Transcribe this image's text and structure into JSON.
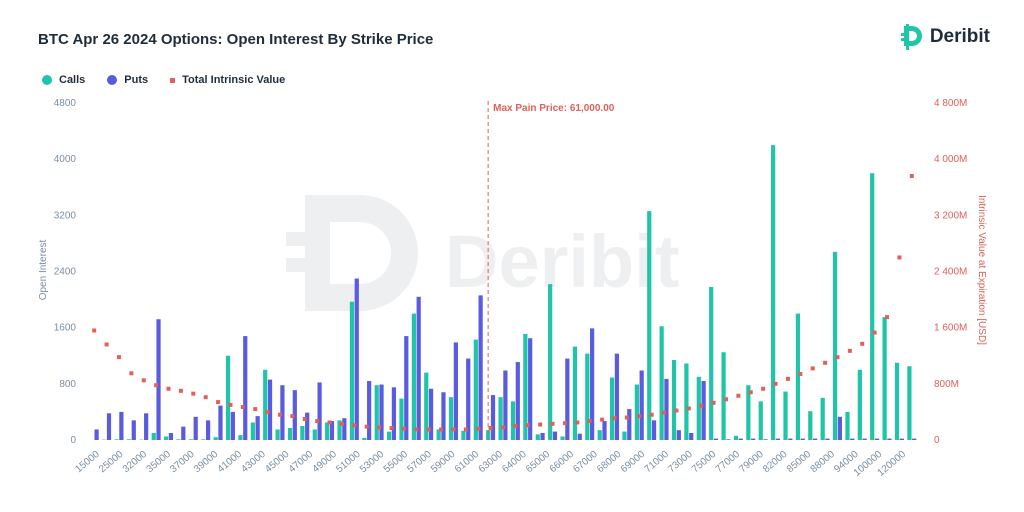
{
  "title": "BTC Apr 26 2024 Options: Open Interest By Strike Price",
  "brand": {
    "name": "Deribit",
    "watermark": "Deribit",
    "icon": "deribit-logo-icon",
    "color": "#1fc7a8"
  },
  "legend": [
    {
      "label": "Calls",
      "color": "#20c5a9",
      "shape": "dot"
    },
    {
      "label": "Puts",
      "color": "#5b5bdf",
      "shape": "dot"
    },
    {
      "label": "Total Intrinsic Value",
      "color": "#e0605a",
      "shape": "square"
    }
  ],
  "chart_data": {
    "type": "bar",
    "x_tick_labels": [
      "15000",
      "25000",
      "32000",
      "35000",
      "37000",
      "39000",
      "41000",
      "43000",
      "45000",
      "47000",
      "49000",
      "51000",
      "53000",
      "55000",
      "57000",
      "59000",
      "61000",
      "63000",
      "64000",
      "65000",
      "66000",
      "67000",
      "68000",
      "69000",
      "71000",
      "73000",
      "75000",
      "77000",
      "79000",
      "82000",
      "85000",
      "88000",
      "94000",
      "100000",
      "120000"
    ],
    "ylabel": "Open Interest",
    "ylim": [
      0,
      4800
    ],
    "yticks": [
      0,
      800,
      1600,
      2400,
      3200,
      4000,
      4800
    ],
    "y2label": "Intrinsic Value at Expiration [USD]",
    "y2lim": [
      0,
      4800
    ],
    "y2ticks": [
      "0",
      "800M",
      "1 600M",
      "2 400M",
      "3 200M",
      "4 000M",
      "4 800M"
    ],
    "annotation": {
      "label": "Max Pain Price: 61,000.00",
      "strike_index": 32.3
    },
    "grid": false,
    "legend_position": "top-left",
    "series": [
      {
        "name": "Calls",
        "color": "#20c5a9",
        "values": [
          0,
          5,
          10,
          10,
          5,
          100,
          50,
          10,
          10,
          10,
          40,
          1200,
          70,
          250,
          1000,
          150,
          170,
          200,
          150,
          250,
          280,
          1970,
          30,
          780,
          120,
          590,
          1800,
          960,
          150,
          610,
          130,
          1430,
          140,
          610,
          550,
          1510,
          80,
          2220,
          50,
          1330,
          1230,
          140,
          890,
          120,
          790,
          3260,
          1620,
          1140,
          1090,
          900,
          2180,
          1250,
          60,
          780,
          550,
          4200,
          690,
          1800,
          410,
          600,
          2680,
          400,
          1000,
          3800,
          1750,
          1100,
          1050
        ]
      },
      {
        "name": "Puts",
        "color": "#5b5bdf",
        "values": [
          150,
          380,
          400,
          280,
          380,
          1720,
          100,
          190,
          330,
          280,
          490,
          400,
          1480,
          340,
          860,
          780,
          710,
          390,
          820,
          270,
          310,
          2300,
          840,
          790,
          750,
          1480,
          2040,
          730,
          680,
          1390,
          1160,
          2060,
          640,
          990,
          1110,
          1450,
          100,
          120,
          1160,
          90,
          1590,
          270,
          1230,
          440,
          990,
          280,
          870,
          140,
          100,
          840,
          20,
          10,
          20,
          20,
          10,
          20,
          20,
          20,
          20,
          20,
          330,
          20,
          20,
          20,
          20,
          20,
          20
        ]
      },
      {
        "name": "Total Intrinsic Value",
        "color": "#e0605a",
        "values": [
          1560,
          1360,
          1180,
          950,
          850,
          780,
          730,
          700,
          660,
          610,
          540,
          500,
          470,
          440,
          400,
          360,
          340,
          300,
          270,
          250,
          230,
          210,
          190,
          180,
          170,
          160,
          150,
          150,
          150,
          150,
          150,
          160,
          170,
          180,
          200,
          210,
          220,
          230,
          240,
          250,
          270,
          290,
          310,
          320,
          340,
          360,
          390,
          420,
          450,
          490,
          530,
          580,
          630,
          680,
          730,
          800,
          870,
          940,
          1020,
          1100,
          1180,
          1270,
          1370,
          1530,
          1750,
          2600,
          3760
        ]
      }
    ]
  }
}
